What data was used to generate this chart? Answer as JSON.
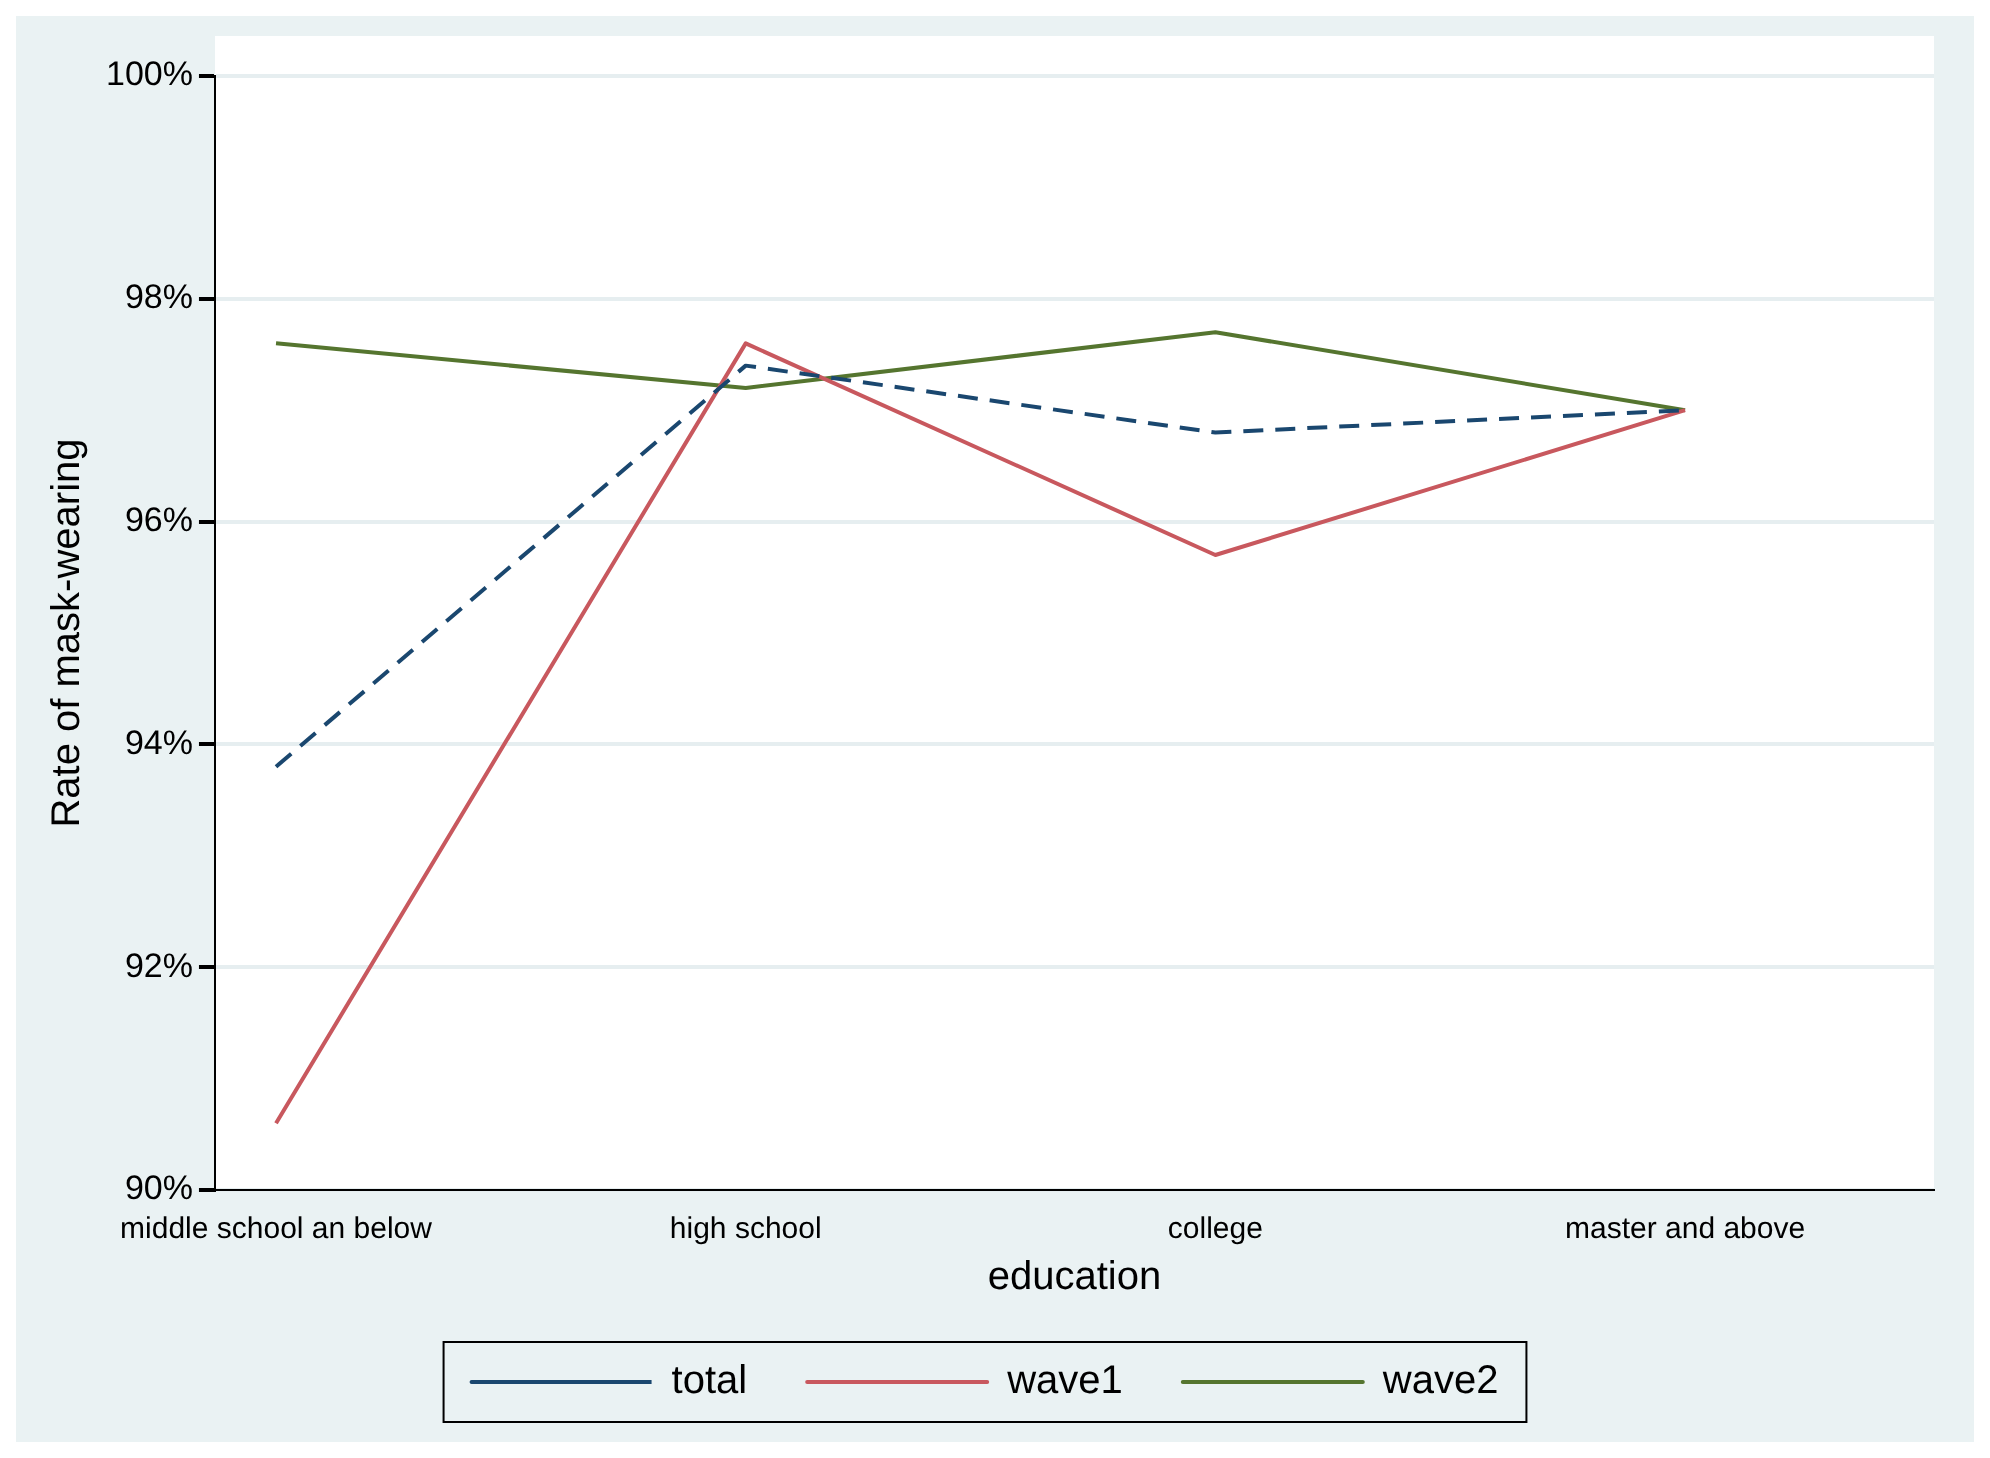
{
  "chart_data": {
    "type": "line",
    "xlabel": "education",
    "ylabel": "Rate of mask-wearing",
    "categories": [
      "middle school an below",
      "high school",
      "college",
      "master and above"
    ],
    "series": [
      {
        "name": "total",
        "color": "#1a476f",
        "line_style": "dashed",
        "values": [
          93.8,
          97.4,
          96.8,
          97.0
        ]
      },
      {
        "name": "wave1",
        "color": "#c8585e",
        "line_style": "solid",
        "values": [
          90.6,
          97.6,
          95.7,
          97.0
        ]
      },
      {
        "name": "wave2",
        "color": "#55752f",
        "line_style": "solid",
        "values": [
          97.6,
          97.2,
          97.7,
          97.0
        ]
      }
    ],
    "ylim": [
      90,
      100
    ],
    "yticks": [
      {
        "value": 90,
        "label": "90%"
      },
      {
        "value": 92,
        "label": "92%"
      },
      {
        "value": 94,
        "label": "94%"
      },
      {
        "value": 96,
        "label": "96%"
      },
      {
        "value": 98,
        "label": "98%"
      },
      {
        "value": 100,
        "label": "100%"
      }
    ],
    "grid": "y",
    "legend": "bottom",
    "marker": "none"
  }
}
